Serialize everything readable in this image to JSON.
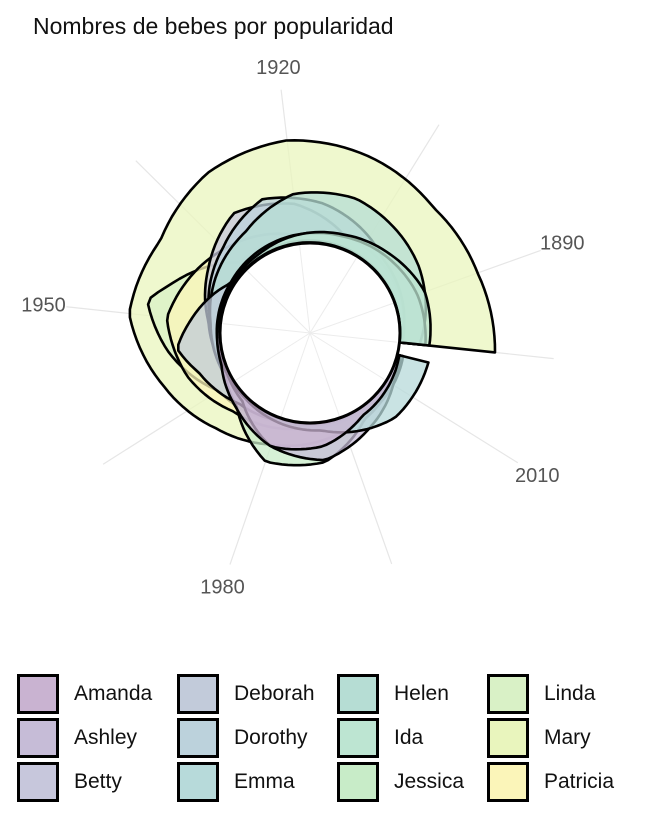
{
  "chart_data": {
    "type": "area",
    "polar": true,
    "title": "Nombres de bebes por popularidad",
    "x_ticks": [
      "1890",
      "1920",
      "1950",
      "1980",
      "2010"
    ],
    "x_tick_values": [
      1890,
      1920,
      1950,
      1980,
      2010
    ],
    "x_range": [
      1880,
      2017
    ],
    "grid": true,
    "legend_position": "bottom",
    "series": [
      {
        "name": "Amanda",
        "color": "#c9b3d1",
        "x": [
          1880,
          1940,
          1960,
          1970,
          1980,
          1990,
          2000,
          2017
        ],
        "y": [
          0,
          1,
          4,
          15,
          30,
          24,
          8,
          2
        ]
      },
      {
        "name": "Ashley",
        "color": "#c6bcd7",
        "x": [
          1880,
          1960,
          1970,
          1980,
          1990,
          2000,
          2010,
          2017
        ],
        "y": [
          0,
          1,
          6,
          30,
          38,
          22,
          8,
          3
        ]
      },
      {
        "name": "Betty",
        "color": "#c7c7dc",
        "x": [
          1880,
          1910,
          1920,
          1930,
          1940,
          1950,
          1960,
          1975
        ],
        "y": [
          3,
          14,
          40,
          52,
          30,
          12,
          4,
          1
        ]
      },
      {
        "name": "Deborah",
        "color": "#c2cbda",
        "x": [
          1880,
          1940,
          1950,
          1955,
          1960,
          1970,
          1980,
          2017
        ],
        "y": [
          0,
          4,
          30,
          44,
          28,
          10,
          3,
          0
        ]
      },
      {
        "name": "Dorothy",
        "color": "#bcd2dc",
        "x": [
          1880,
          1900,
          1915,
          1925,
          1935,
          1950,
          1965,
          2017
        ],
        "y": [
          2,
          14,
          40,
          52,
          32,
          10,
          2,
          0
        ]
      },
      {
        "name": "Emma",
        "color": "#b7dada",
        "x": [
          1880,
          1890,
          1910,
          1940,
          1970,
          1990,
          2005,
          2017
        ],
        "y": [
          26,
          24,
          12,
          4,
          2,
          8,
          30,
          32
        ]
      },
      {
        "name": "Helen",
        "color": "#b6ddd4",
        "x": [
          1880,
          1895,
          1910,
          1920,
          1930,
          1950,
          1970,
          2017
        ],
        "y": [
          20,
          38,
          52,
          50,
          30,
          10,
          2,
          0
        ]
      },
      {
        "name": "Ida",
        "color": "#bde5d2",
        "x": [
          1880,
          1890,
          1900,
          1910,
          1930,
          1950,
          2017
        ],
        "y": [
          30,
          32,
          22,
          14,
          4,
          1,
          0
        ]
      },
      {
        "name": "Jessica",
        "color": "#c8ecc8",
        "x": [
          1880,
          1960,
          1970,
          1980,
          1990,
          2000,
          2017
        ],
        "y": [
          0,
          1,
          14,
          46,
          40,
          12,
          2
        ]
      },
      {
        "name": "Linda",
        "color": "#d9f1c6",
        "x": [
          1880,
          1935,
          1945,
          1948,
          1955,
          1965,
          1980,
          2017
        ],
        "y": [
          0,
          10,
          58,
          76,
          54,
          18,
          4,
          0
        ]
      },
      {
        "name": "Mary",
        "color": "#e9f5bd",
        "x": [
          1880,
          1890,
          1900,
          1910,
          1920,
          1930,
          1940,
          1950,
          1960,
          1970,
          1980,
          1990,
          2000,
          2010,
          2017
        ],
        "y": [
          96,
          88,
          86,
          96,
          104,
          100,
          86,
          92,
          66,
          44,
          28,
          18,
          10,
          8,
          6
        ]
      },
      {
        "name": "Patricia",
        "color": "#fbf5b9",
        "x": [
          1880,
          1920,
          1935,
          1950,
          1960,
          1970,
          1985,
          2017
        ],
        "y": [
          0,
          8,
          30,
          54,
          40,
          20,
          6,
          1
        ]
      }
    ]
  }
}
